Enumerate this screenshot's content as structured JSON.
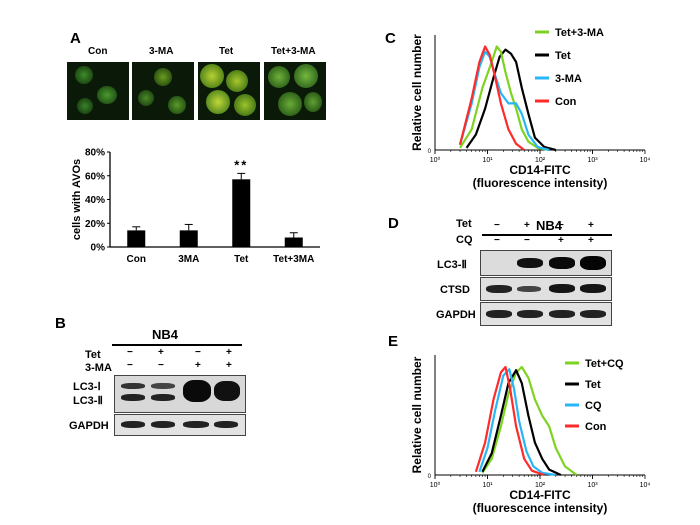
{
  "panel_letters": {
    "a": "A",
    "b": "B",
    "c": "C",
    "d": "D",
    "e": "E"
  },
  "panel_a": {
    "image_labels": [
      "Con",
      "3-MA",
      "Tet",
      "Tet+3-MA"
    ],
    "significance": "**"
  },
  "panel_b": {
    "cell_line": "NB4",
    "rows": [
      "Tet",
      "3-MA"
    ],
    "signs_tet": [
      "−",
      "+",
      "−",
      "+"
    ],
    "signs_3ma": [
      "−",
      "−",
      "+",
      "+"
    ],
    "bands": [
      "LC3-Ⅰ",
      "LC3-Ⅱ",
      "GAPDH"
    ]
  },
  "panel_d": {
    "cell_line": "NB4",
    "rows": [
      "Tet",
      "CQ"
    ],
    "signs_tet": [
      "−",
      "+",
      "−",
      "+"
    ],
    "signs_cq": [
      "−",
      "−",
      "+",
      "+"
    ],
    "bands": [
      "LC3-Ⅱ",
      "CTSD",
      "GAPDH"
    ]
  },
  "colors": {
    "green": "#7ed321",
    "black": "#000000",
    "cyan": "#29b6f6",
    "red": "#ff2a2a"
  },
  "chart_data": [
    {
      "type": "bar",
      "id": "A",
      "categories": [
        "Con",
        "3MA",
        "Tet",
        "Tet+3MA"
      ],
      "values": [
        14,
        14,
        57,
        8
      ],
      "errors": [
        3,
        5,
        5,
        4
      ],
      "ylabel": "cells with AVOs",
      "yticks": [
        "0%",
        "20%",
        "40%",
        "60%",
        "80%"
      ],
      "ylim": [
        0,
        80
      ]
    },
    {
      "type": "line",
      "id": "C",
      "xlabel": "CD14-FITC",
      "xlabel2": "(fluorescence intensity)",
      "ylabel": "Relative cell number",
      "xscale": "log",
      "xticks": [
        "10⁰",
        "10¹",
        "10²",
        "10³",
        "10⁴"
      ],
      "y_axis_label": "0",
      "legend": [
        "Tet+3-MA",
        "Tet",
        "3-MA",
        "Con"
      ],
      "series": [
        {
          "name": "Tet+3-MA",
          "color": "green",
          "x": [
            3,
            5,
            8,
            12,
            15,
            18,
            22,
            28,
            35,
            45,
            60,
            90,
            150
          ],
          "y": [
            0.02,
            0.2,
            0.6,
            0.85,
            1.0,
            0.95,
            0.75,
            0.55,
            0.4,
            0.2,
            0.08,
            0.02,
            0
          ]
        },
        {
          "name": "Tet",
          "color": "black",
          "x": [
            4,
            6,
            9,
            13,
            17,
            22,
            28,
            35,
            45,
            60,
            80,
            120,
            200
          ],
          "y": [
            0.02,
            0.15,
            0.4,
            0.7,
            0.9,
            0.97,
            0.93,
            0.85,
            0.6,
            0.35,
            0.12,
            0.03,
            0
          ]
        },
        {
          "name": "3-MA",
          "color": "cyan",
          "x": [
            3,
            5,
            7,
            9,
            11,
            14,
            18,
            25,
            35,
            45,
            60,
            90,
            150
          ],
          "y": [
            0.05,
            0.45,
            0.8,
            0.95,
            0.9,
            0.72,
            0.55,
            0.45,
            0.45,
            0.35,
            0.15,
            0.03,
            0
          ]
        },
        {
          "name": "Con",
          "color": "red",
          "x": [
            3,
            5,
            7,
            9,
            11,
            14,
            18,
            25,
            35,
            50
          ],
          "y": [
            0.05,
            0.5,
            0.85,
            1.0,
            0.92,
            0.7,
            0.45,
            0.2,
            0.06,
            0
          ]
        }
      ]
    },
    {
      "type": "line",
      "id": "E",
      "xlabel": "CD14-FITC",
      "xlabel2": "(fluorescence intensity)",
      "ylabel": "Relative cell number",
      "xscale": "log",
      "xticks": [
        "10⁰",
        "10¹",
        "10²",
        "10³",
        "10⁴"
      ],
      "y_axis_label": "0",
      "legend": [
        "Tet+CQ",
        "Tet",
        "CQ",
        "Con"
      ],
      "series": [
        {
          "name": "Tet+CQ",
          "color": "green",
          "x": [
            8,
            12,
            18,
            25,
            35,
            45,
            60,
            80,
            110,
            150,
            200,
            300,
            500
          ],
          "y": [
            0.02,
            0.15,
            0.45,
            0.75,
            0.95,
            1.0,
            0.9,
            0.7,
            0.55,
            0.45,
            0.25,
            0.08,
            0
          ]
        },
        {
          "name": "Tet",
          "color": "black",
          "x": [
            8,
            12,
            18,
            25,
            35,
            45,
            60,
            80,
            110,
            150,
            250
          ],
          "y": [
            0.03,
            0.2,
            0.55,
            0.85,
            0.97,
            0.85,
            0.55,
            0.3,
            0.15,
            0.05,
            0
          ]
        },
        {
          "name": "CQ",
          "color": "cyan",
          "x": [
            7,
            10,
            14,
            20,
            26,
            32,
            40,
            55,
            75,
            110,
            200
          ],
          "y": [
            0.03,
            0.25,
            0.6,
            0.92,
            0.98,
            0.8,
            0.5,
            0.22,
            0.08,
            0.02,
            0
          ]
        },
        {
          "name": "Con",
          "color": "red",
          "x": [
            6,
            9,
            13,
            18,
            22,
            27,
            35,
            50,
            70,
            120
          ],
          "y": [
            0.03,
            0.3,
            0.7,
            0.95,
            1.0,
            0.8,
            0.45,
            0.15,
            0.04,
            0
          ]
        }
      ]
    }
  ]
}
